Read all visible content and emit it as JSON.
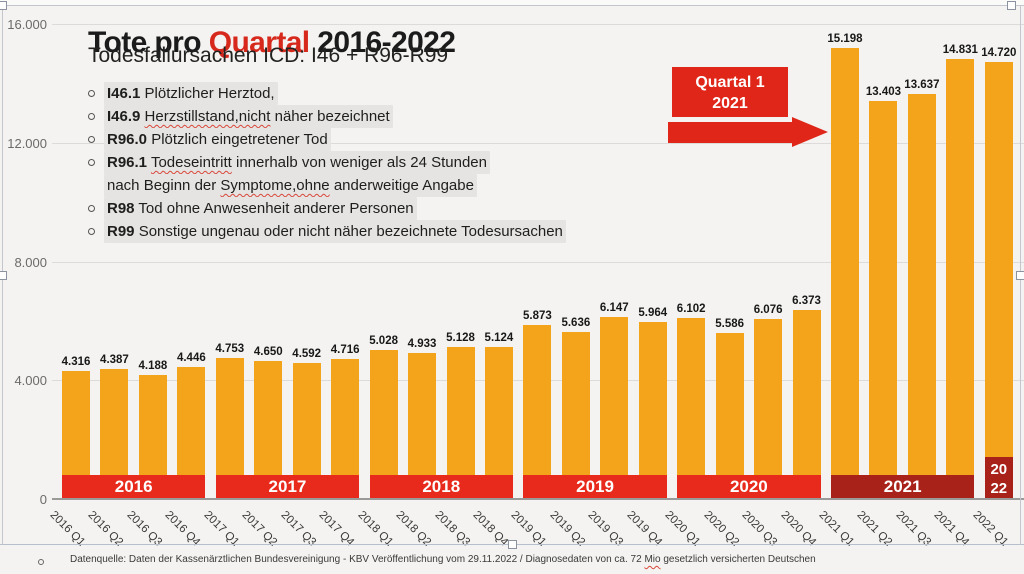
{
  "header": {
    "title_parts": [
      {
        "t": "Tote pro ",
        "color": "#1b1b1b"
      },
      {
        "t": "Quartal",
        "color": "#d7281c"
      },
      {
        "t": " 2016-2022",
        "color": "#1b1b1b"
      }
    ],
    "subtitle": "Todesfallursachen ICD: I46 + R96-R99"
  },
  "legend_list": {
    "lines": [
      {
        "bullet": true,
        "segments": [
          {
            "t": "I46.1",
            "bold": true
          },
          {
            "t": " Plötzlicher Herztod,"
          }
        ]
      },
      {
        "bullet": true,
        "segments": [
          {
            "t": "I46.9",
            "bold": true
          },
          {
            "t": " "
          },
          {
            "t": "Herzstillstand,nicht",
            "wavy": true
          },
          {
            "t": " näher bezeichnet"
          }
        ]
      },
      {
        "bullet": true,
        "segments": [
          {
            "t": "R96.0",
            "bold": true
          },
          {
            "t": " Plötzlich eingetretener Tod"
          }
        ]
      },
      {
        "bullet": true,
        "segments": [
          {
            "t": "R96.1",
            "bold": true
          },
          {
            "t": " "
          },
          {
            "t": "Todeseintritt",
            "wavy": true
          },
          {
            "t": " innerhalb von weniger als 24 Stunden"
          }
        ]
      },
      {
        "bullet": false,
        "segments": [
          {
            "t": "nach Beginn der "
          },
          {
            "t": "Symptome,ohne",
            "wavy": true
          },
          {
            "t": " anderweitige Angabe"
          }
        ]
      },
      {
        "bullet": true,
        "segments": [
          {
            "t": "R98",
            "bold": true
          },
          {
            "t": " Tod ohne Anwesenheit anderer Personen"
          }
        ]
      },
      {
        "bullet": true,
        "segments": [
          {
            "t": "R99",
            "bold": true
          },
          {
            "t": " Sonstige ungenau oder nicht näher bezeichnete Todesursachen"
          }
        ]
      }
    ]
  },
  "callout": {
    "line1": "Quartal 1",
    "line2": "2021",
    "color": "#e02619",
    "text_color": "#ffffff"
  },
  "chart_data": {
    "type": "bar",
    "title": "Tote pro Quartal 2016-2022",
    "subtitle": "Todesfallursachen ICD: I46 + R96-R99",
    "xlabel": "",
    "ylabel": "",
    "ylim": [
      0,
      16000
    ],
    "grid": true,
    "legend_position": "none",
    "bar_color": "#f3a41a",
    "yticks": [
      {
        "v": 0,
        "label": "0"
      },
      {
        "v": 4000,
        "label": "4.000"
      },
      {
        "v": 8000,
        "label": "8.000"
      },
      {
        "v": 12000,
        "label": "12.000"
      },
      {
        "v": 16000,
        "label": "16.000"
      }
    ],
    "categories": [
      "2016 Q1",
      "2016 Q2",
      "2016 Q3",
      "2016 Q4",
      "2017 Q1",
      "2017 Q2",
      "2017 Q3",
      "2017 Q4",
      "2018 Q1",
      "2018 Q2",
      "2018 Q3",
      "2018 Q4",
      "2019 Q1",
      "2019 Q2",
      "2019 Q3",
      "2019 Q4",
      "2020 Q1",
      "2020 Q2",
      "2020 Q3",
      "2020 Q4",
      "2021 Q1",
      "2021 Q2",
      "2021 Q3",
      "2021 Q4",
      "2022 Q1"
    ],
    "values": [
      4316,
      4387,
      4188,
      4446,
      4753,
      4650,
      4592,
      4716,
      5028,
      4933,
      5128,
      5124,
      5873,
      5636,
      6147,
      5964,
      6102,
      5586,
      6076,
      6373,
      15198,
      13403,
      13637,
      14831,
      14720
    ],
    "value_labels": [
      "4.316",
      "4.387",
      "4.188",
      "4.446",
      "4.753",
      "4.650",
      "4.592",
      "4.716",
      "5.028",
      "4.933",
      "5.128",
      "5.124",
      "5.873",
      "5.636",
      "6.147",
      "5.964",
      "6.102",
      "5.586",
      "6.076",
      "6.373",
      "15.198",
      "13.403",
      "13.637",
      "14.831",
      "14.720"
    ],
    "year_bands": [
      {
        "label_lines": [
          "2016"
        ],
        "start": 0,
        "end": 3,
        "color": "#e72a1b",
        "tall": false
      },
      {
        "label_lines": [
          "2017"
        ],
        "start": 4,
        "end": 7,
        "color": "#e72a1b",
        "tall": false
      },
      {
        "label_lines": [
          "2018"
        ],
        "start": 8,
        "end": 11,
        "color": "#e72a1b",
        "tall": false
      },
      {
        "label_lines": [
          "2019"
        ],
        "start": 12,
        "end": 15,
        "color": "#e72a1b",
        "tall": false
      },
      {
        "label_lines": [
          "2020"
        ],
        "start": 16,
        "end": 19,
        "color": "#e72a1b",
        "tall": false
      },
      {
        "label_lines": [
          "2021"
        ],
        "start": 20,
        "end": 23,
        "color": "#a9221a",
        "tall": false
      },
      {
        "label_lines": [
          "20",
          "22"
        ],
        "start": 24,
        "end": 24,
        "color": "#a9221a",
        "tall": true
      }
    ]
  },
  "footer": {
    "segments": [
      {
        "t": "Datenquelle: Daten der Kassenärztlichen Bundesvereinigung - KBV Veröffentlichung vom 29.11.2022 / Diagnosedaten von ca. 72 "
      },
      {
        "t": "Mio",
        "wavy": true
      },
      {
        "t": " gesetzlich versicherten Deutschen"
      }
    ]
  }
}
